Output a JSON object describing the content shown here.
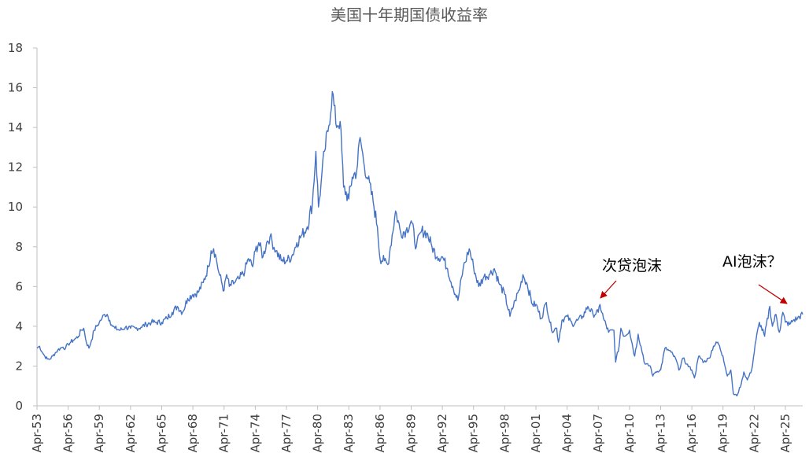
{
  "chart_data": {
    "type": "line",
    "title": "美国十年期国债收益率",
    "xlabel": "",
    "ylabel": "",
    "ylim": [
      0,
      18
    ],
    "yticks": [
      0,
      2,
      4,
      6,
      8,
      10,
      12,
      14,
      16,
      18
    ],
    "xlim": [
      "1953-04",
      "2026-12"
    ],
    "xticks": [
      "Apr-53",
      "Apr-56",
      "Apr-59",
      "Apr-62",
      "Apr-65",
      "Apr-68",
      "Apr-71",
      "Apr-74",
      "Apr-77",
      "Apr-80",
      "Apr-83",
      "Apr-86",
      "Apr-89",
      "Apr-92",
      "Apr-95",
      "Apr-98",
      "Apr-01",
      "Apr-04",
      "Apr-07",
      "Apr-10",
      "Apr-13",
      "Apr-16",
      "Apr-19",
      "Apr-22",
      "Apr-25"
    ],
    "grid": false,
    "line_color": "#4472C4",
    "series": [
      {
        "name": "",
        "points": [
          [
            "1953-04",
            2.9
          ],
          [
            "1953-07",
            3.0
          ],
          [
            "1953-10",
            2.7
          ],
          [
            "1954-01",
            2.5
          ],
          [
            "1954-04",
            2.35
          ],
          [
            "1954-07",
            2.35
          ],
          [
            "1954-10",
            2.5
          ],
          [
            "1955-01",
            2.65
          ],
          [
            "1955-04",
            2.8
          ],
          [
            "1955-07",
            2.9
          ],
          [
            "1955-10",
            2.95
          ],
          [
            "1956-01",
            2.9
          ],
          [
            "1956-04",
            3.1
          ],
          [
            "1956-07",
            3.2
          ],
          [
            "1956-10",
            3.3
          ],
          [
            "1957-01",
            3.4
          ],
          [
            "1957-04",
            3.5
          ],
          [
            "1957-07",
            3.8
          ],
          [
            "1957-10",
            3.9
          ],
          [
            "1958-01",
            3.2
          ],
          [
            "1958-04",
            2.9
          ],
          [
            "1958-07",
            3.3
          ],
          [
            "1958-10",
            3.8
          ],
          [
            "1959-01",
            4.0
          ],
          [
            "1959-04",
            4.2
          ],
          [
            "1959-07",
            4.4
          ],
          [
            "1959-10",
            4.6
          ],
          [
            "1960-01",
            4.6
          ],
          [
            "1960-04",
            4.3
          ],
          [
            "1960-07",
            4.0
          ],
          [
            "1960-10",
            3.9
          ],
          [
            "1961-04",
            3.8
          ],
          [
            "1961-10",
            3.95
          ],
          [
            "1962-04",
            3.9
          ],
          [
            "1962-10",
            3.9
          ],
          [
            "1963-04",
            3.95
          ],
          [
            "1963-10",
            4.1
          ],
          [
            "1964-04",
            4.2
          ],
          [
            "1964-10",
            4.2
          ],
          [
            "1965-04",
            4.2
          ],
          [
            "1965-10",
            4.4
          ],
          [
            "1966-04",
            4.7
          ],
          [
            "1966-10",
            5.0
          ],
          [
            "1967-04",
            4.7
          ],
          [
            "1967-10",
            5.4
          ],
          [
            "1968-04",
            5.6
          ],
          [
            "1968-10",
            5.7
          ],
          [
            "1969-04",
            6.2
          ],
          [
            "1969-10",
            7.0
          ],
          [
            "1970-01",
            7.8
          ],
          [
            "1970-04",
            7.9
          ],
          [
            "1970-07",
            7.4
          ],
          [
            "1970-10",
            6.7
          ],
          [
            "1971-04",
            5.8
          ],
          [
            "1971-07",
            6.6
          ],
          [
            "1971-10",
            6.0
          ],
          [
            "1972-04",
            6.2
          ],
          [
            "1972-10",
            6.4
          ],
          [
            "1973-04",
            6.8
          ],
          [
            "1973-08",
            7.4
          ],
          [
            "1974-01",
            7.0
          ],
          [
            "1974-04",
            7.8
          ],
          [
            "1974-08",
            8.2
          ],
          [
            "1975-01",
            7.5
          ],
          [
            "1975-05",
            8.2
          ],
          [
            "1975-09",
            8.5
          ],
          [
            "1976-04",
            7.8
          ],
          [
            "1976-10",
            7.3
          ],
          [
            "1977-04",
            7.3
          ],
          [
            "1977-10",
            7.5
          ],
          [
            "1978-04",
            8.2
          ],
          [
            "1978-10",
            8.6
          ],
          [
            "1979-04",
            9.0
          ],
          [
            "1979-10",
            10.2
          ],
          [
            "1980-02",
            12.8
          ],
          [
            "1980-05",
            10.0
          ],
          [
            "1980-08",
            11.2
          ],
          [
            "1980-12",
            12.8
          ],
          [
            "1981-04",
            13.8
          ],
          [
            "1981-09",
            15.8
          ],
          [
            "1982-01",
            14.2
          ],
          [
            "1982-06",
            14.3
          ],
          [
            "1982-10",
            11.0
          ],
          [
            "1983-04",
            10.4
          ],
          [
            "1983-08",
            11.5
          ],
          [
            "1984-01",
            11.8
          ],
          [
            "1984-05",
            13.5
          ],
          [
            "1984-09",
            12.3
          ],
          [
            "1985-02",
            11.4
          ],
          [
            "1985-08",
            10.3
          ],
          [
            "1986-01",
            9.0
          ],
          [
            "1986-04",
            7.4
          ],
          [
            "1986-09",
            7.3
          ],
          [
            "1987-01",
            7.1
          ],
          [
            "1987-04",
            8.0
          ],
          [
            "1987-10",
            9.8
          ],
          [
            "1988-04",
            8.7
          ],
          [
            "1988-10",
            8.8
          ],
          [
            "1989-04",
            9.3
          ],
          [
            "1989-10",
            8.0
          ],
          [
            "1990-04",
            8.8
          ],
          [
            "1990-10",
            8.7
          ],
          [
            "1991-04",
            8.0
          ],
          [
            "1991-10",
            7.5
          ],
          [
            "1992-04",
            7.5
          ],
          [
            "1992-10",
            6.9
          ],
          [
            "1993-04",
            6.0
          ],
          [
            "1993-10",
            5.3
          ],
          [
            "1994-04",
            6.9
          ],
          [
            "1994-11",
            7.9
          ],
          [
            "1995-04",
            7.0
          ],
          [
            "1995-10",
            6.0
          ],
          [
            "1996-04",
            6.5
          ],
          [
            "1996-10",
            6.6
          ],
          [
            "1997-04",
            6.9
          ],
          [
            "1997-10",
            6.1
          ],
          [
            "1998-04",
            5.6
          ],
          [
            "1998-10",
            4.5
          ],
          [
            "1999-04",
            5.3
          ],
          [
            "1999-10",
            6.0
          ],
          [
            "2000-01",
            6.6
          ],
          [
            "2000-06",
            6.1
          ],
          [
            "2000-12",
            5.1
          ],
          [
            "2001-04",
            5.1
          ],
          [
            "2001-10",
            4.4
          ],
          [
            "2002-04",
            5.2
          ],
          [
            "2002-10",
            3.8
          ],
          [
            "2003-04",
            3.9
          ],
          [
            "2003-06",
            3.2
          ],
          [
            "2003-10",
            4.3
          ],
          [
            "2004-04",
            4.5
          ],
          [
            "2004-10",
            4.1
          ],
          [
            "2005-04",
            4.3
          ],
          [
            "2005-10",
            4.5
          ],
          [
            "2006-04",
            5.0
          ],
          [
            "2006-10",
            4.6
          ],
          [
            "2007-04",
            4.7
          ],
          [
            "2007-06",
            5.1
          ],
          [
            "2007-10",
            4.4
          ],
          [
            "2008-04",
            3.7
          ],
          [
            "2008-10",
            3.8
          ],
          [
            "2008-12",
            2.2
          ],
          [
            "2009-04",
            3.0
          ],
          [
            "2009-06",
            3.9
          ],
          [
            "2009-10",
            3.5
          ],
          [
            "2010-04",
            3.8
          ],
          [
            "2010-10",
            2.5
          ],
          [
            "2011-02",
            3.6
          ],
          [
            "2011-10",
            2.1
          ],
          [
            "2012-04",
            2.0
          ],
          [
            "2012-07",
            1.5
          ],
          [
            "2012-10",
            1.7
          ],
          [
            "2013-04",
            1.8
          ],
          [
            "2013-09",
            2.9
          ],
          [
            "2014-04",
            2.7
          ],
          [
            "2014-10",
            2.3
          ],
          [
            "2015-01",
            1.8
          ],
          [
            "2015-06",
            2.4
          ],
          [
            "2015-10",
            2.1
          ],
          [
            "2016-04",
            1.8
          ],
          [
            "2016-07",
            1.4
          ],
          [
            "2016-12",
            2.5
          ],
          [
            "2017-06",
            2.2
          ],
          [
            "2017-12",
            2.4
          ],
          [
            "2018-05",
            3.0
          ],
          [
            "2018-10",
            3.2
          ],
          [
            "2019-04",
            2.5
          ],
          [
            "2019-09",
            1.5
          ],
          [
            "2020-01",
            1.8
          ],
          [
            "2020-04",
            0.6
          ],
          [
            "2020-08",
            0.5
          ],
          [
            "2021-01",
            1.1
          ],
          [
            "2021-04",
            1.7
          ],
          [
            "2021-08",
            1.3
          ],
          [
            "2022-01",
            1.8
          ],
          [
            "2022-06",
            3.3
          ],
          [
            "2022-10",
            4.2
          ],
          [
            "2023-04",
            3.5
          ],
          [
            "2023-10",
            5.0
          ],
          [
            "2024-01",
            4.0
          ],
          [
            "2024-05",
            4.6
          ],
          [
            "2024-09",
            3.7
          ],
          [
            "2025-01",
            4.7
          ],
          [
            "2025-04",
            4.2
          ],
          [
            "2025-09",
            4.1
          ],
          [
            "2026-01",
            4.3
          ],
          [
            "2026-06",
            4.4
          ],
          [
            "2026-12",
            4.6
          ]
        ]
      }
    ],
    "annotations": [
      {
        "text": "次贷泡沫",
        "date": "2007-06",
        "value": 5.1,
        "arrow_color": "#C00000"
      },
      {
        "text": "AI泡沫？",
        "date": "2025-12",
        "value": 5.0,
        "arrow_color": "#C00000"
      }
    ]
  }
}
